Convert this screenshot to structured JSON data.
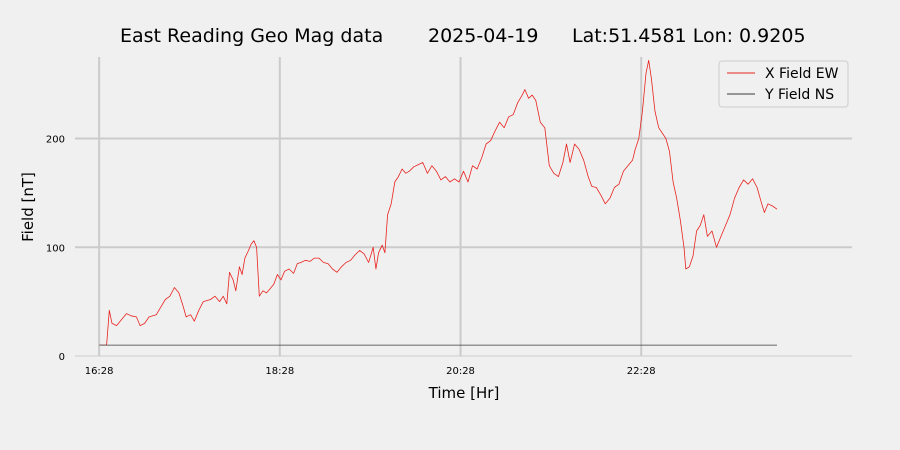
{
  "chart_data": {
    "type": "line",
    "title": {
      "station": "East Reading Geo Mag data",
      "date": "2025-04-19",
      "location": "Lat:51.4581  Lon: 0.9205"
    },
    "xlabel": "Time  [Hr]",
    "ylabel": "Field  [nT]",
    "x_unit": "hours",
    "xlim": [
      16.2,
      24.8
    ],
    "ylim": [
      0,
      275
    ],
    "xticks": [
      {
        "value": 16.467,
        "label": "16:28"
      },
      {
        "value": 18.467,
        "label": "18:28"
      },
      {
        "value": 20.467,
        "label": "20:28"
      },
      {
        "value": 22.467,
        "label": "22:28"
      }
    ],
    "yticks": [
      {
        "value": 0,
        "label": "0"
      },
      {
        "value": 100,
        "label": "100"
      },
      {
        "value": 200,
        "label": "200"
      }
    ],
    "grid": true,
    "legend": "top-right",
    "series": [
      {
        "name": "X Field EW",
        "color": "#e8231e",
        "points": [
          [
            16.47,
            10
          ],
          [
            16.55,
            10
          ],
          [
            16.58,
            42
          ],
          [
            16.61,
            30
          ],
          [
            16.66,
            28
          ],
          [
            16.72,
            34
          ],
          [
            16.77,
            39
          ],
          [
            16.82,
            37
          ],
          [
            16.88,
            36
          ],
          [
            16.92,
            28
          ],
          [
            16.97,
            30
          ],
          [
            17.02,
            36
          ],
          [
            17.1,
            38
          ],
          [
            17.15,
            45
          ],
          [
            17.2,
            52
          ],
          [
            17.25,
            55
          ],
          [
            17.3,
            63
          ],
          [
            17.35,
            58
          ],
          [
            17.4,
            45
          ],
          [
            17.43,
            36
          ],
          [
            17.48,
            38
          ],
          [
            17.52,
            32
          ],
          [
            17.57,
            42
          ],
          [
            17.62,
            50
          ],
          [
            17.7,
            52
          ],
          [
            17.75,
            55
          ],
          [
            17.8,
            50
          ],
          [
            17.84,
            55
          ],
          [
            17.88,
            48
          ],
          [
            17.91,
            77
          ],
          [
            17.95,
            70
          ],
          [
            17.98,
            60
          ],
          [
            18.02,
            82
          ],
          [
            18.05,
            75
          ],
          [
            18.08,
            90
          ],
          [
            18.12,
            97
          ],
          [
            18.15,
            103
          ],
          [
            18.18,
            106
          ],
          [
            18.21,
            100
          ],
          [
            18.24,
            55
          ],
          [
            18.28,
            60
          ],
          [
            18.32,
            58
          ],
          [
            18.36,
            62
          ],
          [
            18.4,
            66
          ],
          [
            18.44,
            75
          ],
          [
            18.48,
            70
          ],
          [
            18.52,
            78
          ],
          [
            18.57,
            80
          ],
          [
            18.62,
            76
          ],
          [
            18.66,
            85
          ],
          [
            18.7,
            86
          ],
          [
            18.75,
            88
          ],
          [
            18.8,
            87
          ],
          [
            18.85,
            90
          ],
          [
            18.9,
            90
          ],
          [
            18.95,
            86
          ],
          [
            19.0,
            85
          ],
          [
            19.05,
            80
          ],
          [
            19.1,
            77
          ],
          [
            19.15,
            82
          ],
          [
            19.2,
            86
          ],
          [
            19.25,
            88
          ],
          [
            19.3,
            93
          ],
          [
            19.35,
            97
          ],
          [
            19.4,
            94
          ],
          [
            19.45,
            86
          ],
          [
            19.5,
            100
          ],
          [
            19.53,
            80
          ],
          [
            19.56,
            95
          ],
          [
            19.6,
            102
          ],
          [
            19.63,
            95
          ],
          [
            19.66,
            130
          ],
          [
            19.7,
            140
          ],
          [
            19.74,
            160
          ],
          [
            19.78,
            165
          ],
          [
            19.82,
            172
          ],
          [
            19.86,
            168
          ],
          [
            19.9,
            170
          ],
          [
            19.95,
            174
          ],
          [
            20.0,
            176
          ],
          [
            20.05,
            178
          ],
          [
            20.1,
            168
          ],
          [
            20.15,
            175
          ],
          [
            20.2,
            170
          ],
          [
            20.25,
            162
          ],
          [
            20.3,
            165
          ],
          [
            20.35,
            160
          ],
          [
            20.4,
            163
          ],
          [
            20.45,
            160
          ],
          [
            20.5,
            170
          ],
          [
            20.55,
            160
          ],
          [
            20.6,
            175
          ],
          [
            20.65,
            172
          ],
          [
            20.7,
            182
          ],
          [
            20.75,
            195
          ],
          [
            20.8,
            198
          ],
          [
            20.85,
            207
          ],
          [
            20.9,
            215
          ],
          [
            20.95,
            210
          ],
          [
            21.0,
            220
          ],
          [
            21.05,
            222
          ],
          [
            21.1,
            233
          ],
          [
            21.15,
            240
          ],
          [
            21.18,
            245
          ],
          [
            21.22,
            237
          ],
          [
            21.26,
            240
          ],
          [
            21.3,
            235
          ],
          [
            21.35,
            215
          ],
          [
            21.4,
            210
          ],
          [
            21.45,
            175
          ],
          [
            21.5,
            168
          ],
          [
            21.55,
            165
          ],
          [
            21.6,
            178
          ],
          [
            21.64,
            195
          ],
          [
            21.68,
            178
          ],
          [
            21.73,
            195
          ],
          [
            21.78,
            190
          ],
          [
            21.83,
            180
          ],
          [
            21.88,
            165
          ],
          [
            21.92,
            156
          ],
          [
            21.97,
            155
          ],
          [
            22.02,
            148
          ],
          [
            22.07,
            140
          ],
          [
            22.12,
            145
          ],
          [
            22.17,
            155
          ],
          [
            22.22,
            158
          ],
          [
            22.27,
            170
          ],
          [
            22.32,
            175
          ],
          [
            22.37,
            180
          ],
          [
            22.4,
            190
          ],
          [
            22.44,
            200
          ],
          [
            22.48,
            225
          ],
          [
            22.52,
            260
          ],
          [
            22.55,
            272
          ],
          [
            22.58,
            255
          ],
          [
            22.62,
            225
          ],
          [
            22.66,
            210
          ],
          [
            22.7,
            205
          ],
          [
            22.74,
            200
          ],
          [
            22.78,
            188
          ],
          [
            22.82,
            160
          ],
          [
            22.86,
            145
          ],
          [
            22.9,
            125
          ],
          [
            22.94,
            100
          ],
          [
            22.96,
            80
          ],
          [
            23.0,
            82
          ],
          [
            23.04,
            92
          ],
          [
            23.08,
            115
          ],
          [
            23.12,
            120
          ],
          [
            23.16,
            130
          ],
          [
            23.2,
            110
          ],
          [
            23.25,
            115
          ],
          [
            23.3,
            100
          ],
          [
            23.35,
            110
          ],
          [
            23.4,
            120
          ],
          [
            23.45,
            130
          ],
          [
            23.5,
            145
          ],
          [
            23.55,
            155
          ],
          [
            23.6,
            162
          ],
          [
            23.65,
            158
          ],
          [
            23.7,
            163
          ],
          [
            23.75,
            155
          ],
          [
            23.8,
            140
          ],
          [
            23.83,
            132
          ],
          [
            23.87,
            140
          ],
          [
            23.92,
            138
          ],
          [
            23.97,
            135
          ]
        ]
      },
      {
        "name": "Y Field NS",
        "color": "#3a3a3a",
        "points": [
          [
            16.47,
            10
          ],
          [
            18.0,
            10
          ],
          [
            20.0,
            10
          ],
          [
            22.0,
            10
          ],
          [
            23.97,
            10
          ]
        ]
      }
    ]
  }
}
